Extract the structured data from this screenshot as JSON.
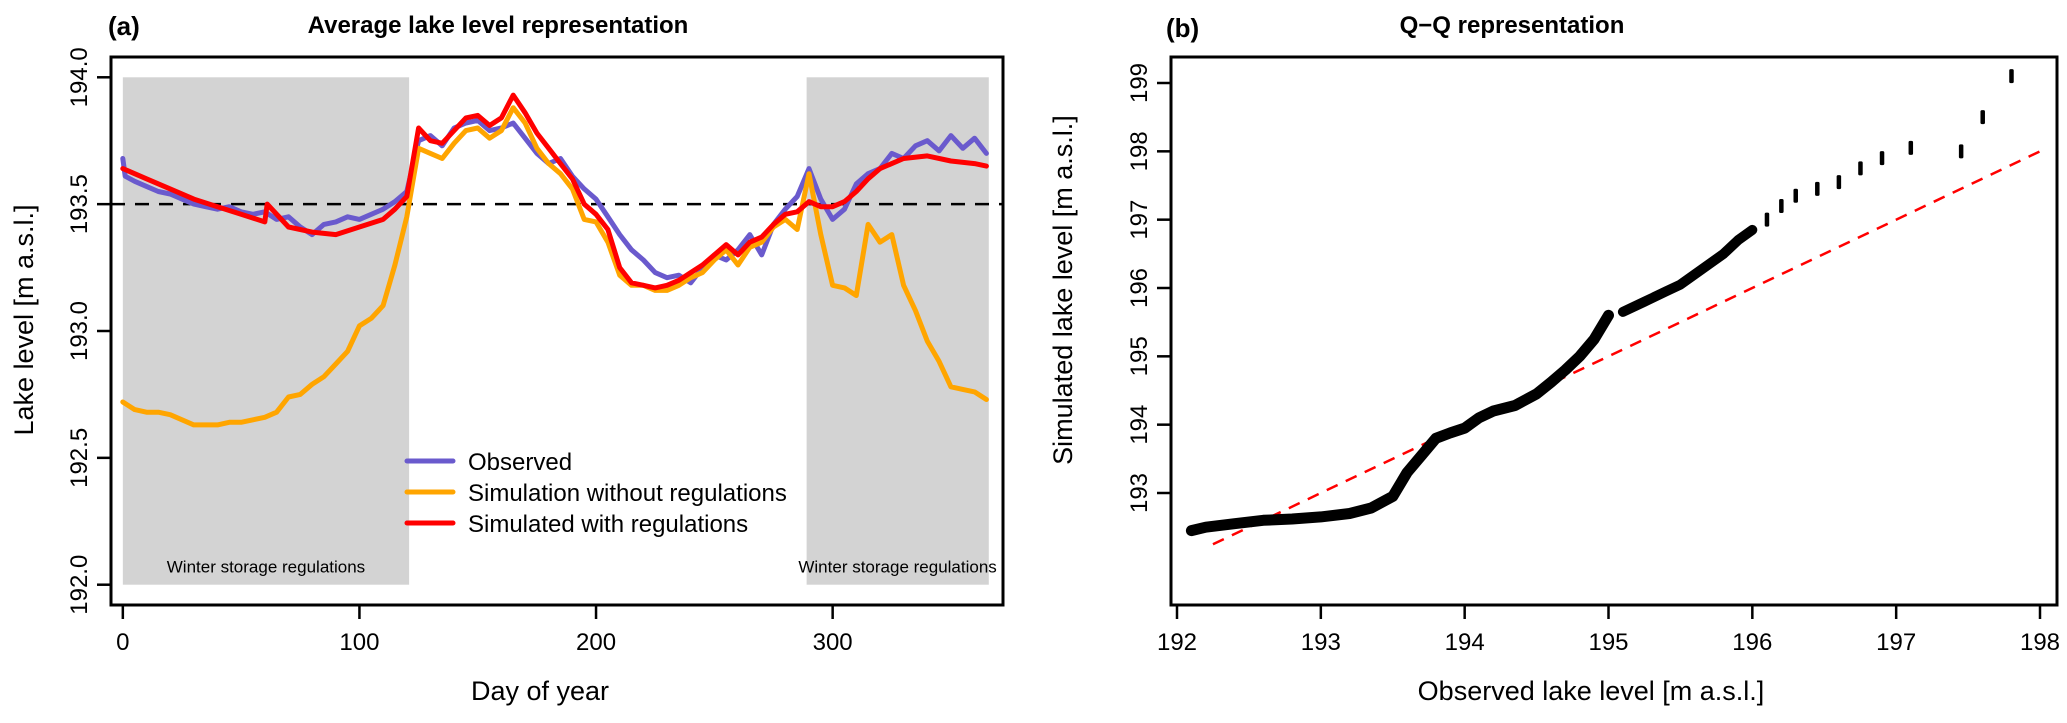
{
  "chart_data": [
    {
      "type": "line",
      "panel_label": "(a)",
      "title": "Average lake level representation",
      "xlabel": "Day of year",
      "ylabel": "Lake level [m a.s.l.]",
      "xlim": [
        -5,
        372
      ],
      "ylim": [
        191.92,
        194.08
      ],
      "xticks": [
        0,
        100,
        200,
        300
      ],
      "xtick_labels": [
        "0",
        "100",
        "200",
        "300"
      ],
      "yticks": [
        192.0,
        192.5,
        193.0,
        193.5,
        194.0
      ],
      "ytick_labels": [
        "192.0",
        "192.5",
        "193.0",
        "193.5",
        "194.0"
      ],
      "grid": false,
      "reference_line": {
        "y": 193.5,
        "style": "dashed",
        "color": "#000000"
      },
      "shaded_regions": [
        {
          "x0": 0,
          "x1": 121,
          "y0": 192.0,
          "y1": 194.0,
          "label": "Winter storage regulations",
          "color": "#d3d3d3"
        },
        {
          "x0": 289,
          "x1": 366,
          "y0": 192.0,
          "y1": 194.0,
          "label": "Winter storage regulations",
          "color": "#d3d3d3"
        }
      ],
      "legend": {
        "placement": "bottom-center",
        "entries": [
          {
            "label": "Observed",
            "color": "#6a5acd"
          },
          {
            "label": "Simulation without regulations",
            "color": "#ffa500"
          },
          {
            "label": "Simulated with regulations",
            "color": "#ff0000"
          }
        ]
      },
      "series": [
        {
          "name": "Observed",
          "color": "#6a5acd",
          "x": [
            0,
            1,
            5,
            10,
            15,
            20,
            25,
            30,
            35,
            40,
            45,
            50,
            55,
            60,
            65,
            70,
            75,
            80,
            85,
            90,
            95,
            100,
            105,
            110,
            115,
            120,
            125,
            130,
            135,
            140,
            145,
            150,
            155,
            160,
            165,
            170,
            175,
            180,
            185,
            190,
            195,
            200,
            205,
            210,
            215,
            220,
            225,
            230,
            235,
            240,
            245,
            250,
            255,
            260,
            265,
            270,
            275,
            280,
            285,
            290,
            295,
            300,
            305,
            310,
            315,
            320,
            325,
            330,
            335,
            340,
            345,
            350,
            355,
            360,
            365
          ],
          "y": [
            193.68,
            193.61,
            193.59,
            193.57,
            193.55,
            193.54,
            193.52,
            193.5,
            193.49,
            193.48,
            193.49,
            193.47,
            193.46,
            193.47,
            193.44,
            193.45,
            193.41,
            193.38,
            193.42,
            193.43,
            193.45,
            193.44,
            193.46,
            193.48,
            193.51,
            193.55,
            193.75,
            193.77,
            193.73,
            193.8,
            193.82,
            193.83,
            193.79,
            193.8,
            193.82,
            193.76,
            193.7,
            193.66,
            193.68,
            193.61,
            193.56,
            193.52,
            193.45,
            193.38,
            193.32,
            193.28,
            193.23,
            193.21,
            193.22,
            193.19,
            193.25,
            193.3,
            193.28,
            193.32,
            193.38,
            193.3,
            193.42,
            193.48,
            193.53,
            193.64,
            193.52,
            193.44,
            193.48,
            193.58,
            193.62,
            193.64,
            193.7,
            193.68,
            193.73,
            193.75,
            193.71,
            193.77,
            193.72,
            193.76,
            193.7
          ]
        },
        {
          "name": "Simulation without regulations",
          "color": "#ffa500",
          "x": [
            0,
            5,
            10,
            15,
            20,
            25,
            30,
            35,
            40,
            45,
            50,
            55,
            60,
            65,
            70,
            75,
            80,
            85,
            90,
            95,
            100,
            105,
            110,
            115,
            120,
            125,
            130,
            135,
            140,
            145,
            150,
            155,
            160,
            165,
            170,
            175,
            180,
            185,
            190,
            195,
            200,
            205,
            210,
            215,
            220,
            225,
            230,
            235,
            240,
            245,
            250,
            255,
            260,
            265,
            270,
            275,
            280,
            285,
            290,
            295,
            300,
            305,
            310,
            315,
            320,
            325,
            330,
            335,
            340,
            345,
            350,
            355,
            360,
            365
          ],
          "y": [
            192.72,
            192.69,
            192.68,
            192.68,
            192.67,
            192.65,
            192.63,
            192.63,
            192.63,
            192.64,
            192.64,
            192.65,
            192.66,
            192.68,
            192.74,
            192.75,
            192.79,
            192.82,
            192.87,
            192.92,
            193.02,
            193.05,
            193.1,
            193.26,
            193.45,
            193.72,
            193.7,
            193.68,
            193.74,
            193.79,
            193.8,
            193.76,
            193.79,
            193.88,
            193.82,
            193.72,
            193.66,
            193.62,
            193.56,
            193.44,
            193.43,
            193.35,
            193.22,
            193.18,
            193.18,
            193.16,
            193.16,
            193.18,
            193.21,
            193.23,
            193.28,
            193.32,
            193.26,
            193.33,
            193.35,
            193.41,
            193.44,
            193.4,
            193.62,
            193.38,
            193.18,
            193.17,
            193.14,
            193.42,
            193.35,
            193.38,
            193.18,
            193.08,
            192.96,
            192.88,
            192.78,
            192.77,
            192.76,
            192.73
          ]
        },
        {
          "name": "Simulated with regulations",
          "color": "#ff0000",
          "x": [
            0,
            10,
            20,
            30,
            40,
            50,
            60,
            61,
            70,
            80,
            90,
            100,
            110,
            115,
            120,
            125,
            130,
            135,
            140,
            145,
            150,
            155,
            160,
            165,
            170,
            175,
            180,
            185,
            190,
            195,
            200,
            205,
            210,
            215,
            220,
            225,
            230,
            235,
            240,
            245,
            250,
            255,
            260,
            265,
            270,
            275,
            280,
            285,
            290,
            295,
            300,
            305,
            310,
            315,
            320,
            330,
            340,
            350,
            360,
            365
          ],
          "y": [
            193.64,
            193.6,
            193.56,
            193.52,
            193.49,
            193.46,
            193.43,
            193.5,
            193.41,
            193.39,
            193.38,
            193.41,
            193.44,
            193.48,
            193.53,
            193.8,
            193.75,
            193.74,
            193.79,
            193.84,
            193.85,
            193.81,
            193.84,
            193.93,
            193.86,
            193.78,
            193.72,
            193.66,
            193.6,
            193.5,
            193.46,
            193.4,
            193.25,
            193.19,
            193.18,
            193.17,
            193.18,
            193.2,
            193.23,
            193.26,
            193.3,
            193.34,
            193.3,
            193.35,
            193.37,
            193.42,
            193.46,
            193.47,
            193.51,
            193.49,
            193.49,
            193.51,
            193.55,
            193.6,
            193.64,
            193.68,
            193.69,
            193.67,
            193.66,
            193.65
          ]
        }
      ]
    },
    {
      "type": "scatter",
      "panel_label": "(b)",
      "title": "Q−Q representation",
      "xlabel": "Observed lake level [m a.s.l.]",
      "ylabel": "Simulated lake level [m a.s.l.]",
      "xlim": [
        191.9,
        198.05
      ],
      "ylim": [
        192.2,
        199.35
      ],
      "xticks": [
        192,
        193,
        194,
        195,
        196,
        197,
        198
      ],
      "xtick_labels": [
        "192",
        "193",
        "194",
        "195",
        "196",
        "197",
        "198"
      ],
      "yticks": [
        193,
        194,
        195,
        196,
        197,
        198,
        199
      ],
      "ytick_labels": [
        "193",
        "194",
        "195",
        "196",
        "197",
        "198",
        "199"
      ],
      "grid": false,
      "reference_line": {
        "type": "1:1",
        "style": "dashed",
        "color": "#ff0000"
      },
      "points": {
        "color": "#000000",
        "x": [
          192.1,
          192.2,
          192.4,
          192.6,
          192.8,
          193.0,
          193.2,
          193.35,
          193.5,
          193.6,
          193.7,
          193.8,
          193.9,
          194.0,
          194.1,
          194.2,
          194.35,
          194.5,
          194.6,
          194.7,
          194.8,
          194.9,
          195.0,
          195.1,
          195.25,
          195.4,
          195.5,
          195.6,
          195.7,
          195.8,
          195.9,
          196.0,
          196.1,
          196.2,
          196.3,
          196.45,
          196.6,
          196.75,
          196.9,
          197.1,
          197.45,
          197.6,
          197.8
        ],
        "y": [
          192.45,
          192.5,
          192.55,
          192.6,
          192.62,
          192.65,
          192.7,
          192.78,
          192.95,
          193.3,
          193.55,
          193.8,
          193.88,
          193.95,
          194.1,
          194.2,
          194.28,
          194.45,
          194.62,
          194.8,
          195.0,
          195.25,
          195.6,
          195.65,
          195.8,
          195.95,
          196.05,
          196.2,
          196.35,
          196.5,
          196.7,
          196.85,
          197.0,
          197.2,
          197.35,
          197.45,
          197.55,
          197.75,
          197.9,
          198.05,
          198.0,
          198.5,
          199.1
        ]
      }
    }
  ]
}
